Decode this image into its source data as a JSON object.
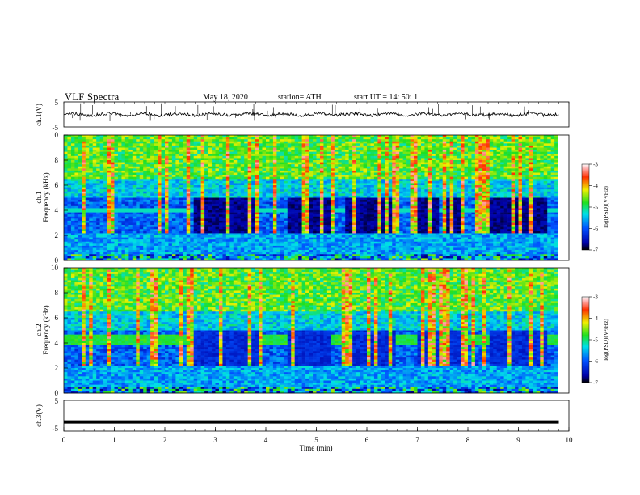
{
  "header": {
    "title": "VLF  Spectra",
    "date": "May 18, 2020",
    "station": "station= ATH",
    "start": "start  UT  =   14: 50: 1"
  },
  "chart_data": [
    {
      "type": "line",
      "panel": "ch1-waveform",
      "ylabel": "ch.1(V)",
      "ylim": [
        -5,
        5
      ],
      "yticks": [
        "5",
        "-5"
      ],
      "xlim": [
        0,
        10
      ],
      "baseline": 0,
      "note_series": "noisy waveform near 0 V with sparse spikes"
    },
    {
      "type": "heatmap",
      "panel": "ch1-spectrogram",
      "ylabel_line1": "ch.1",
      "ylabel_line2": "Frequency  (kHz)",
      "ylim": [
        0,
        10
      ],
      "yticks": [
        "0",
        "2",
        "4",
        "6",
        "8",
        "10"
      ],
      "xlim": [
        0,
        10
      ],
      "colorbar": {
        "label": "log(PSD)(V²/Hz)",
        "range": [
          -7,
          -3
        ],
        "ticks": [
          "-3",
          "-4",
          "-5",
          "-6",
          "-7"
        ]
      },
      "quiet_segments_min": [
        [
          2.55,
          3.85
        ],
        [
          4.45,
          5.3
        ],
        [
          5.6,
          6.6
        ],
        [
          7.0,
          7.45
        ],
        [
          7.6,
          7.85
        ],
        [
          8.4,
          9.6
        ]
      ]
    },
    {
      "type": "heatmap",
      "panel": "ch2-spectrogram",
      "ylabel_line1": "ch.2",
      "ylabel_line2": "Frequency  (kHz)",
      "ylim": [
        0,
        10
      ],
      "yticks": [
        "0",
        "2",
        "4",
        "6",
        "8",
        "10"
      ],
      "xlim": [
        0,
        10
      ],
      "colorbar": {
        "label": "log(PSD)(V²/Hz)",
        "range": [
          -7,
          -3
        ],
        "ticks": [
          "-3",
          "-4",
          "-5",
          "-6",
          "-7"
        ]
      },
      "quiet_segments_min": [
        [
          2.55,
          3.85
        ],
        [
          4.45,
          5.3
        ],
        [
          5.6,
          6.6
        ],
        [
          7.0,
          7.45
        ],
        [
          7.6,
          7.85
        ],
        [
          8.4,
          9.6
        ]
      ]
    },
    {
      "type": "line",
      "panel": "ch3-waveform",
      "ylabel": "ch.3(V)",
      "ylim": [
        -5,
        5
      ],
      "yticks": [
        "5",
        "-5"
      ],
      "xlim": [
        0,
        10
      ],
      "xticks": [
        "0",
        "1",
        "2",
        "3",
        "4",
        "5",
        "6",
        "7",
        "8",
        "9",
        "10"
      ],
      "xlabel": "Time  (min)",
      "value": -2,
      "end_min": 9.8
    }
  ]
}
